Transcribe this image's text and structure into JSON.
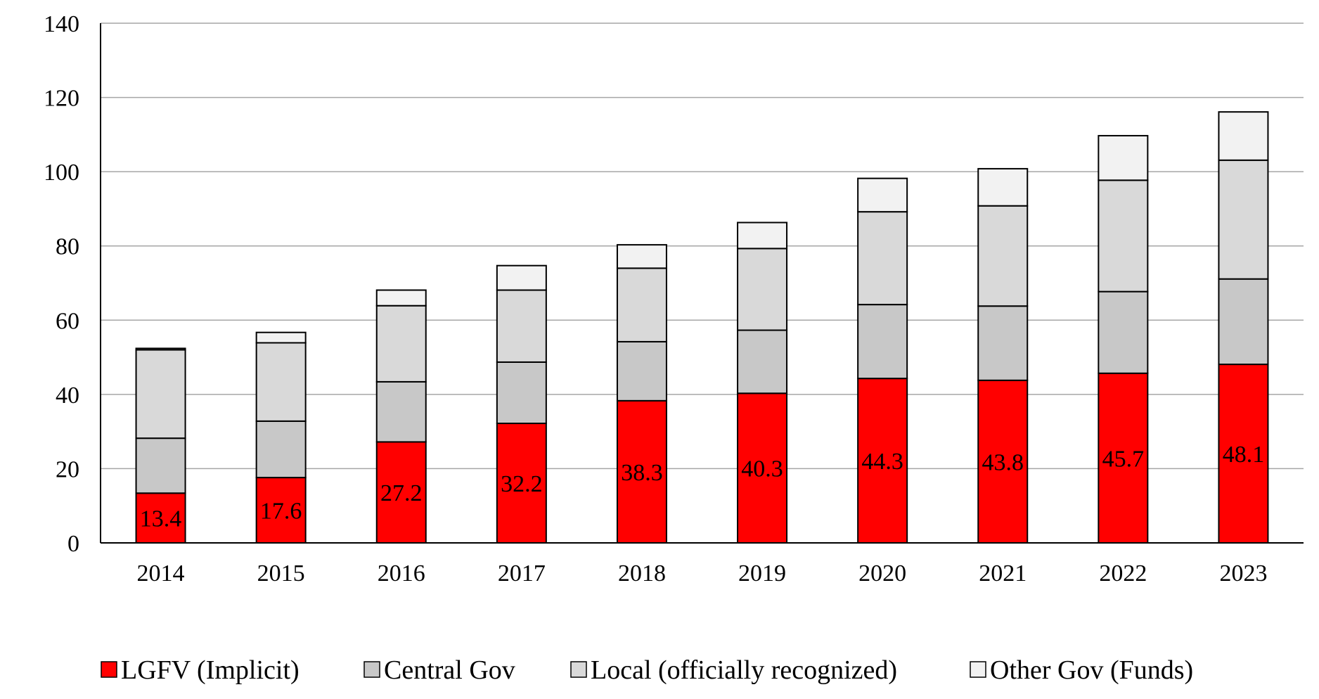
{
  "chart_data": {
    "type": "bar",
    "stacked": true,
    "title": "",
    "xlabel": "",
    "ylabel": "",
    "ylim": [
      0,
      140
    ],
    "yticks": [
      0,
      20,
      40,
      60,
      80,
      100,
      120,
      140
    ],
    "grid": true,
    "legend_position": "bottom",
    "categories": [
      "2014",
      "2015",
      "2016",
      "2017",
      "2018",
      "2019",
      "2020",
      "2021",
      "2022",
      "2023"
    ],
    "series": [
      {
        "name": "LGFV (Implicit)",
        "color": "#ff0000",
        "values": [
          13.4,
          17.6,
          27.2,
          32.2,
          38.3,
          40.3,
          44.3,
          43.8,
          45.7,
          48.1
        ],
        "labels": [
          "13.4",
          "17.6",
          "27.2",
          "32.2",
          "38.3",
          "40.3",
          "44.3",
          "43.8",
          "45.7",
          "48.1"
        ]
      },
      {
        "name": "Central Gov",
        "color": "#c8c8c8",
        "values": [
          14.8,
          15.2,
          16.2,
          16.5,
          15.9,
          17.0,
          19.9,
          20.0,
          22.0,
          23.0
        ]
      },
      {
        "name": "Local (officially recognized)",
        "color": "#d9d9d9",
        "values": [
          23.8,
          21.1,
          20.5,
          19.4,
          19.8,
          22.0,
          25.0,
          27.0,
          30.0,
          32.0
        ]
      },
      {
        "name": "Other Gov (Funds)",
        "color": "#f2f2f2",
        "values": [
          0.4,
          2.8,
          4.2,
          6.6,
          6.3,
          7.0,
          9.0,
          10.0,
          12.0,
          13.0
        ]
      }
    ]
  }
}
